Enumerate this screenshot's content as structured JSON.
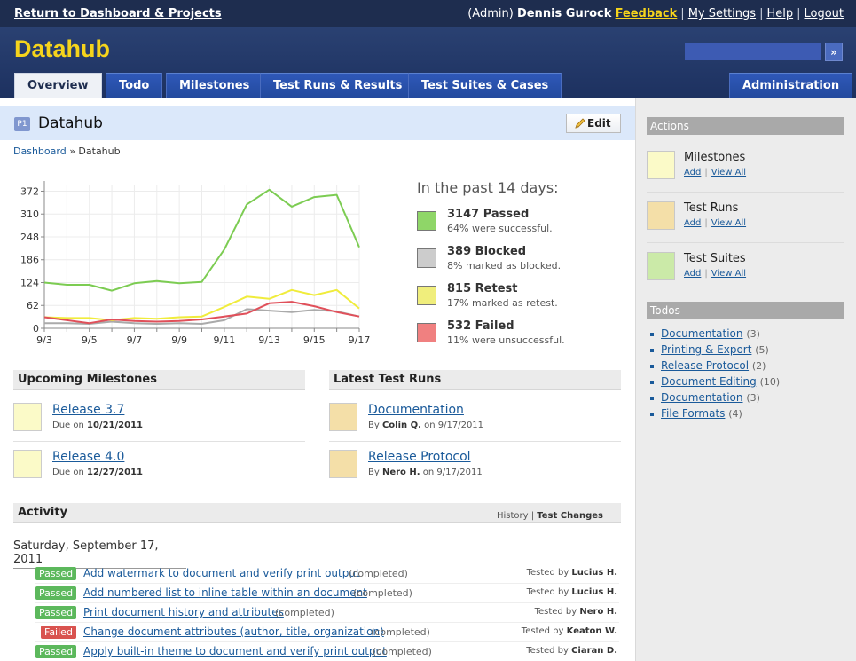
{
  "topbar": {
    "return_link": "Return to Dashboard & Projects",
    "role": "(Admin)",
    "user": "Dennis Gurock",
    "feedback": "Feedback",
    "my_settings": "My Settings",
    "help": "Help",
    "logout": "Logout"
  },
  "header": {
    "brand": "Datahub",
    "search_value": "",
    "go_label": "»"
  },
  "tabs": [
    {
      "label": "Overview",
      "active": true
    },
    {
      "label": "Todo"
    },
    {
      "label": "Milestones"
    },
    {
      "label": "Test Runs & Results"
    },
    {
      "label": "Test Suites & Cases"
    },
    {
      "label": "Administration"
    }
  ],
  "page": {
    "badge": "P1",
    "title": "Datahub",
    "edit_label": "Edit",
    "breadcrumb_link": "Dashboard",
    "breadcrumb_sep": "»",
    "breadcrumb_current": "Datahub"
  },
  "chart_data": {
    "type": "line",
    "x": [
      "9/3",
      "9/4",
      "9/5",
      "9/6",
      "9/7",
      "9/8",
      "9/9",
      "9/10",
      "9/11",
      "9/12",
      "9/13",
      "9/14",
      "9/15",
      "9/16",
      "9/17"
    ],
    "x_tick_labels": [
      "9/3",
      "9/5",
      "9/7",
      "9/9",
      "9/11",
      "9/13",
      "9/15",
      "9/17"
    ],
    "y_ticks": [
      0,
      62,
      124,
      186,
      248,
      310,
      372
    ],
    "ylim": [
      0,
      390
    ],
    "grid": true,
    "series": [
      {
        "name": "Passed",
        "color": "#7ccc52",
        "values": [
          124,
          118,
          118,
          102,
          122,
          128,
          122,
          126,
          214,
          336,
          376,
          330,
          356,
          362,
          220
        ]
      },
      {
        "name": "Blocked",
        "color": "#aaaaaa",
        "values": [
          14,
          14,
          12,
          18,
          14,
          12,
          14,
          12,
          22,
          52,
          48,
          44,
          50,
          46,
          32
        ]
      },
      {
        "name": "Retest",
        "color": "#f0ec3c",
        "values": [
          30,
          28,
          28,
          22,
          28,
          26,
          30,
          32,
          58,
          86,
          80,
          104,
          90,
          104,
          54
        ]
      },
      {
        "name": "Failed",
        "color": "#e0505a",
        "values": [
          30,
          22,
          14,
          24,
          20,
          18,
          20,
          24,
          32,
          40,
          68,
          72,
          60,
          44,
          32
        ]
      }
    ]
  },
  "stats": {
    "heading": "In the past 14 days:",
    "items": [
      {
        "count": "3147 Passed",
        "desc": "64% were successful.",
        "color": "#8fd668"
      },
      {
        "count": "389 Blocked",
        "desc": "8% marked as blocked.",
        "color": "#cccccc"
      },
      {
        "count": "815 Retest",
        "desc": "17% marked as retest.",
        "color": "#f0ee7c"
      },
      {
        "count": "532 Failed",
        "desc": "11% were unsuccessful.",
        "color": "#f08080"
      }
    ]
  },
  "milestones": {
    "heading": "Upcoming Milestones",
    "items": [
      {
        "name": "Release 3.7",
        "prefix": "Due on",
        "date": "10/21/2011"
      },
      {
        "name": "Release 4.0",
        "prefix": "Due on",
        "date": "12/27/2011"
      }
    ]
  },
  "runs": {
    "heading": "Latest Test Runs",
    "items": [
      {
        "name": "Documentation",
        "by": "By",
        "author": "Colin Q.",
        "on": "on 9/17/2011"
      },
      {
        "name": "Release Protocol",
        "by": "By",
        "author": "Nero H.",
        "on": "on 9/17/2011"
      }
    ]
  },
  "activity": {
    "heading": "Activity",
    "history": "History",
    "sep": "|",
    "test_changes": "Test Changes",
    "date": "Saturday, September 17, 2011",
    "rows": [
      {
        "status": "Passed",
        "color": "#5cb85c",
        "title": "Add watermark to document and verify print output",
        "state": "(completed)",
        "tested_by": "Tested by",
        "tester": "Lucius H."
      },
      {
        "status": "Passed",
        "color": "#5cb85c",
        "title": "Add numbered list to inline table within an document",
        "state": "(completed)",
        "tested_by": "Tested by",
        "tester": "Lucius H."
      },
      {
        "status": "Passed",
        "color": "#5cb85c",
        "title": "Print document history and attributes",
        "state": "(completed)",
        "tested_by": "Tested by",
        "tester": "Nero H."
      },
      {
        "status": "Failed",
        "color": "#d9534f",
        "title": "Change document attributes (author, title, organization)",
        "state": "(completed)",
        "tested_by": "Tested by",
        "tester": "Keaton W."
      },
      {
        "status": "Passed",
        "color": "#5cb85c",
        "title": "Apply built-in theme to document and verify print output",
        "state": "(completed)",
        "tested_by": "Tested by",
        "tester": "Ciaran D."
      }
    ]
  },
  "sidebar": {
    "actions_heading": "Actions",
    "actions": [
      {
        "label": "Milestones",
        "add": "Add",
        "view_all": "View All",
        "color": "#fbfac8"
      },
      {
        "label": "Test Runs",
        "add": "Add",
        "view_all": "View All",
        "color": "#f4dfa8"
      },
      {
        "label": "Test Suites",
        "add": "Add",
        "view_all": "View All",
        "color": "#cbeaa8"
      }
    ],
    "todos_heading": "Todos",
    "todos": [
      {
        "label": "Documentation",
        "count": "(3)"
      },
      {
        "label": "Printing & Export",
        "count": "(5)"
      },
      {
        "label": "Release Protocol",
        "count": "(2)"
      },
      {
        "label": "Document Editing",
        "count": "(10)"
      },
      {
        "label": "Documentation",
        "count": "(3)"
      },
      {
        "label": "File Formats",
        "count": "(4)"
      }
    ]
  }
}
